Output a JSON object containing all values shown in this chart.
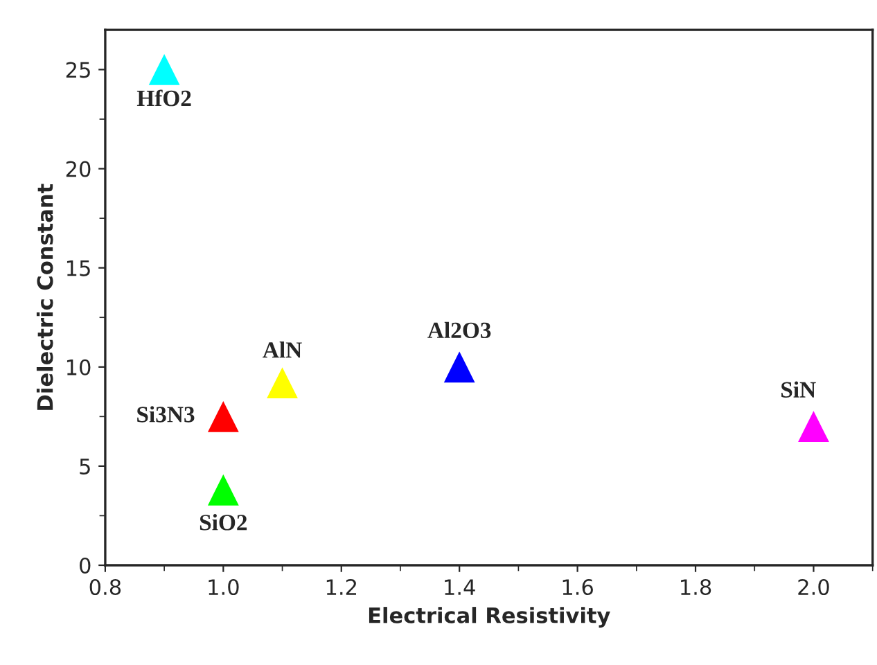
{
  "chart_data": {
    "type": "scatter",
    "xlabel": "Electrical Resistivity",
    "ylabel": "Dielectric Constant",
    "x": [
      0.9,
      1.0,
      1.0,
      1.1,
      1.4,
      2.0
    ],
    "values": [
      25,
      7.5,
      3.8,
      9.2,
      10,
      7
    ],
    "colors": [
      "#00ffff",
      "#ff0000",
      "#00ff00",
      "#ffff00",
      "#0000ff",
      "#ff00ff"
    ],
    "marker": "triangle",
    "xlim": [
      0.8,
      2.1
    ],
    "xticks": [
      {
        "value": 0.8,
        "label": "0.8"
      },
      {
        "value": 1.0,
        "label": "1.0"
      },
      {
        "value": 1.2,
        "label": "1.2"
      },
      {
        "value": 1.4,
        "label": "1.4"
      },
      {
        "value": 1.6,
        "label": "1.6"
      },
      {
        "value": 1.8,
        "label": "1.8"
      },
      {
        "value": 2.0,
        "label": "2.0"
      }
    ],
    "ylim": [
      0,
      27
    ],
    "yticks": [
      0,
      5,
      10,
      15,
      20,
      25
    ],
    "annotations": [
      {
        "text": "HfO2",
        "x": 0.9,
        "y": 25
      },
      {
        "text": "Si3N3",
        "x": 1.0,
        "y": 7.5
      },
      {
        "text": "SiO2",
        "x": 1.0,
        "y": 3.8
      },
      {
        "text": "AlN",
        "x": 1.1,
        "y": 9.2
      },
      {
        "text": "Al2O3",
        "x": 1.4,
        "y": 10
      },
      {
        "text": "SiN",
        "x": 2.0,
        "y": 7
      }
    ],
    "grid": false,
    "legend": false
  }
}
